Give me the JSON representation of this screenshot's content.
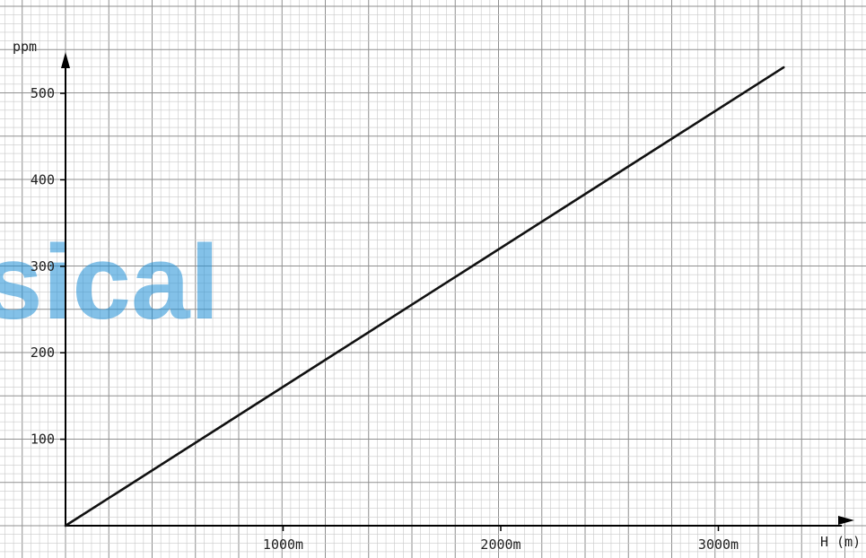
{
  "watermark_text": "sical",
  "colors": {
    "paper": "#ffffff",
    "grid_minor": "#c9c9c9",
    "grid_major": "#8f8f8f",
    "axis": "#000000",
    "line": "#111111",
    "watermark": "#1f8fd6"
  },
  "chart_data": {
    "type": "line",
    "title": "",
    "xlabel": "H (m)",
    "ylabel": "ppm",
    "xlim": [
      0,
      3600
    ],
    "ylim": [
      0,
      540
    ],
    "x_ticks": [
      1000,
      2000,
      3000
    ],
    "x_tick_labels": [
      "1000m",
      "2000m",
      "3000m"
    ],
    "y_ticks": [
      100,
      200,
      300,
      400,
      500
    ],
    "y_tick_labels": [
      "100",
      "200",
      "300",
      "400",
      "500"
    ],
    "grid": true,
    "series": [
      {
        "x": [
          0,
          3300
        ],
        "y": [
          0,
          530
        ]
      }
    ]
  }
}
